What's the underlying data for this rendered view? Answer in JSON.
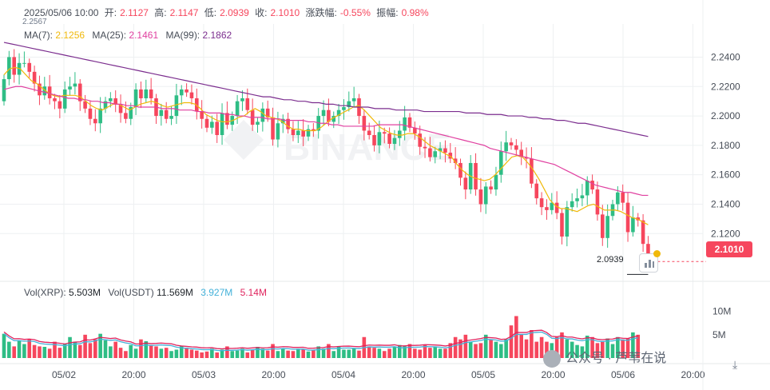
{
  "info": {
    "datetime": "2025/05/06 10:00",
    "open_label": "开:",
    "open": "2.1127",
    "high_label": "高:",
    "high": "2.1147",
    "low_label": "低:",
    "low": "2.0939",
    "close_label": "收:",
    "close": "2.1010",
    "change_label": "涨跌幅:",
    "change": "-0.55%",
    "amp_label": "振幅:",
    "amp": "0.98%"
  },
  "ma": {
    "ma7_label": "MA(7):",
    "ma7": "2.1256",
    "ma25_label": "MA(25):",
    "ma25": "2.1461",
    "ma99_label": "MA(99):",
    "ma99": "2.1862"
  },
  "vol": {
    "xrp_label": "Vol(XRP):",
    "xrp": "5.503M",
    "usdt_label": "Vol(USDT)",
    "usdt": "11.569M",
    "ma1": "3.927M",
    "ma2": "5.14M"
  },
  "markers": {
    "high_marker": "2.2567",
    "low_marker": "2.0939",
    "last_price": "2.1010"
  },
  "watermark": "BINANCE",
  "brand": {
    "separator": "公众号 · 芦苇在说"
  },
  "download_icon": "download-icon",
  "colors": {
    "up": "#2ebd85",
    "down": "#f6465d",
    "ma7": "#f0b90b",
    "ma25": "#e040a0",
    "ma99": "#7b2d8e",
    "grid": "#eef0f2"
  },
  "chart_data": {
    "type": "candlestick",
    "interval": "1h",
    "y_axis": {
      "ticks": [
        2.24,
        2.22,
        2.2,
        2.18,
        2.16,
        2.14,
        2.12
      ],
      "tick_labels": [
        "2.2400",
        "2.2200",
        "2.2000",
        "2.1800",
        "2.1600",
        "2.1400",
        "2.1200"
      ],
      "range": [
        2.093,
        2.256
      ]
    },
    "x_axis": {
      "tick_labels": [
        "05/02",
        "20:00",
        "05/03",
        "20:00",
        "05/04",
        "20:00",
        "05/05",
        "20:00",
        "05/06",
        "20:00"
      ]
    },
    "volume_axis": {
      "tick_labels": [
        "10M",
        "5M"
      ],
      "range": [
        0,
        12
      ]
    },
    "candles_close": [
      2.225,
      2.24,
      2.228,
      2.236,
      2.236,
      2.23,
      2.222,
      2.214,
      2.22,
      2.212,
      2.21,
      2.205,
      2.218,
      2.22,
      2.222,
      2.21,
      2.205,
      2.198,
      2.195,
      2.205,
      2.21,
      2.212,
      2.208,
      2.202,
      2.198,
      2.206,
      2.218,
      2.212,
      2.218,
      2.212,
      2.2,
      2.204,
      2.198,
      2.2,
      2.214,
      2.218,
      2.216,
      2.212,
      2.203,
      2.198,
      2.192,
      2.196,
      2.187,
      2.202,
      2.194,
      2.2,
      2.21,
      2.212,
      2.204,
      2.194,
      2.196,
      2.205,
      2.199,
      2.184,
      2.195,
      2.198,
      2.191,
      2.187,
      2.19,
      2.186,
      2.191,
      2.19,
      2.2,
      2.204,
      2.196,
      2.2,
      2.204,
      2.206,
      2.21,
      2.212,
      2.2,
      2.19,
      2.187,
      2.18,
      2.189,
      2.188,
      2.181,
      2.185,
      2.19,
      2.199,
      2.192,
      2.188,
      2.179,
      2.178,
      2.172,
      2.176,
      2.178,
      2.175,
      2.171,
      2.168,
      2.158,
      2.15,
      2.168,
      2.15,
      2.14,
      2.152,
      2.15,
      2.16,
      2.176,
      2.182,
      2.18,
      2.177,
      2.172,
      2.171,
      2.154,
      2.144,
      2.138,
      2.136,
      2.141,
      2.134,
      2.118,
      2.138,
      2.142,
      2.144,
      2.146,
      2.156,
      2.15,
      2.133,
      2.117,
      2.132,
      2.14,
      2.148,
      2.141,
      2.121,
      2.131,
      2.129,
      2.113,
      2.101
    ],
    "candles_open": [
      2.21,
      2.225,
      2.24,
      2.228,
      2.236,
      2.236,
      2.23,
      2.222,
      2.214,
      2.22,
      2.212,
      2.21,
      2.205,
      2.218,
      2.22,
      2.222,
      2.21,
      2.205,
      2.198,
      2.195,
      2.205,
      2.21,
      2.212,
      2.208,
      2.202,
      2.198,
      2.206,
      2.218,
      2.212,
      2.218,
      2.212,
      2.2,
      2.204,
      2.198,
      2.2,
      2.214,
      2.218,
      2.216,
      2.212,
      2.203,
      2.198,
      2.192,
      2.196,
      2.187,
      2.202,
      2.194,
      2.2,
      2.21,
      2.212,
      2.204,
      2.194,
      2.196,
      2.205,
      2.199,
      2.184,
      2.195,
      2.198,
      2.191,
      2.187,
      2.19,
      2.186,
      2.191,
      2.19,
      2.2,
      2.204,
      2.196,
      2.2,
      2.204,
      2.206,
      2.21,
      2.212,
      2.2,
      2.19,
      2.187,
      2.18,
      2.189,
      2.188,
      2.181,
      2.185,
      2.19,
      2.199,
      2.192,
      2.188,
      2.179,
      2.178,
      2.172,
      2.176,
      2.178,
      2.175,
      2.171,
      2.168,
      2.158,
      2.15,
      2.168,
      2.15,
      2.14,
      2.152,
      2.15,
      2.16,
      2.176,
      2.182,
      2.18,
      2.177,
      2.172,
      2.171,
      2.154,
      2.144,
      2.138,
      2.136,
      2.141,
      2.134,
      2.118,
      2.138,
      2.142,
      2.144,
      2.146,
      2.156,
      2.15,
      2.133,
      2.117,
      2.132,
      2.14,
      2.148,
      2.141,
      2.121,
      2.131,
      2.129,
      2.113
    ],
    "ma7": [
      2.228,
      2.232,
      2.233,
      2.232,
      2.228,
      2.224,
      2.222,
      2.219,
      2.216,
      2.214,
      2.213,
      2.214,
      2.214,
      2.214,
      2.213,
      2.21,
      2.207,
      2.205,
      2.204,
      2.206,
      2.208,
      2.208,
      2.206,
      2.204,
      2.206,
      2.208,
      2.209,
      2.21,
      2.209,
      2.207,
      2.206,
      2.207,
      2.208,
      2.209,
      2.209,
      2.208,
      2.205,
      2.201,
      2.199,
      2.197,
      2.196,
      2.196,
      2.197,
      2.199,
      2.2,
      2.203,
      2.205,
      2.203,
      2.2,
      2.199,
      2.198,
      2.196,
      2.193,
      2.191,
      2.191,
      2.19,
      2.19,
      2.19,
      2.192,
      2.195,
      2.198,
      2.2,
      2.202,
      2.204,
      2.206,
      2.207,
      2.204,
      2.2,
      2.196,
      2.192,
      2.19,
      2.188,
      2.187,
      2.187,
      2.188,
      2.188,
      2.186,
      2.183,
      2.18,
      2.178,
      2.176,
      2.174,
      2.172,
      2.167,
      2.163,
      2.16,
      2.158,
      2.157,
      2.156,
      2.157,
      2.16,
      2.164,
      2.168,
      2.172,
      2.173,
      2.172,
      2.168,
      2.163,
      2.157,
      2.15,
      2.143,
      2.139,
      2.137,
      2.137,
      2.136,
      2.135,
      2.137,
      2.139,
      2.14,
      2.138,
      2.136,
      2.136,
      2.136,
      2.135,
      2.133,
      2.131,
      2.13,
      2.128,
      2.126
    ],
    "ma25": [
      2.218,
      2.219,
      2.22,
      2.22,
      2.219,
      2.218,
      2.217,
      2.216,
      2.215,
      2.214,
      2.213,
      2.212,
      2.212,
      2.211,
      2.211,
      2.21,
      2.21,
      2.209,
      2.209,
      2.208,
      2.208,
      2.207,
      2.207,
      2.206,
      2.206,
      2.206,
      2.206,
      2.205,
      2.205,
      2.205,
      2.204,
      2.204,
      2.204,
      2.203,
      2.203,
      2.202,
      2.202,
      2.202,
      2.201,
      2.201,
      2.2,
      2.2,
      2.199,
      2.199,
      2.199,
      2.198,
      2.198,
      2.198,
      2.197,
      2.197,
      2.197,
      2.197,
      2.196,
      2.196,
      2.195,
      2.195,
      2.194,
      2.194,
      2.193,
      2.193,
      2.193,
      2.193,
      2.193,
      2.193,
      2.194,
      2.194,
      2.194,
      2.194,
      2.194,
      2.193,
      2.192,
      2.191,
      2.19,
      2.189,
      2.188,
      2.187,
      2.186,
      2.185,
      2.184,
      2.183,
      2.182,
      2.181,
      2.18,
      2.178,
      2.177,
      2.176,
      2.175,
      2.174,
      2.173,
      2.172,
      2.171,
      2.17,
      2.169,
      2.168,
      2.167,
      2.165,
      2.163,
      2.161,
      2.159,
      2.157,
      2.155,
      2.153,
      2.152,
      2.151,
      2.15,
      2.149,
      2.148,
      2.148,
      2.147,
      2.146,
      2.146
    ],
    "ma99": [
      2.25,
      2.249,
      2.248,
      2.247,
      2.246,
      2.245,
      2.244,
      2.243,
      2.242,
      2.241,
      2.24,
      2.239,
      2.238,
      2.237,
      2.236,
      2.235,
      2.234,
      2.233,
      2.232,
      2.231,
      2.23,
      2.229,
      2.228,
      2.227,
      2.226,
      2.225,
      2.224,
      2.223,
      2.222,
      2.221,
      2.22,
      2.219,
      2.218,
      2.217,
      2.216,
      2.215,
      2.214,
      2.213,
      2.213,
      2.212,
      2.211,
      2.211,
      2.21,
      2.21,
      2.209,
      2.209,
      2.208,
      2.208,
      2.207,
      2.207,
      2.206,
      2.206,
      2.206,
      2.205,
      2.205,
      2.205,
      2.204,
      2.204,
      2.204,
      2.204,
      2.203,
      2.203,
      2.203,
      2.203,
      2.203,
      2.203,
      2.202,
      2.202,
      2.202,
      2.201,
      2.201,
      2.201,
      2.2,
      2.2,
      2.2,
      2.199,
      2.199,
      2.198,
      2.198,
      2.197,
      2.197,
      2.196,
      2.195,
      2.195,
      2.194,
      2.193,
      2.192,
      2.191,
      2.19,
      2.189,
      2.188,
      2.187,
      2.186
    ],
    "volume": [
      5.2,
      3.5,
      2.5,
      3.8,
      3.0,
      4.0,
      2.8,
      2.5,
      2.4,
      2.0,
      3.5,
      2.2,
      3.0,
      4.5,
      3.5,
      2.8,
      5.0,
      3.2,
      4.0,
      5.2,
      3.8,
      2.5,
      3.5,
      2.2,
      1.5,
      2.8,
      2.0,
      4.0,
      3.6,
      2.8,
      2.5,
      2.0,
      2.2,
      1.5,
      1.8,
      2.5,
      2.2,
      1.8,
      1.6,
      1.2,
      1.4,
      2.0,
      1.2,
      1.8,
      2.5,
      1.5,
      1.6,
      2.0,
      1.2,
      1.8,
      2.4,
      2.0,
      1.6,
      3.0,
      1.5,
      2.0,
      1.6,
      1.5,
      2.0,
      1.8,
      1.4,
      1.7,
      2.5,
      2.0,
      3.0,
      1.5,
      2.5,
      1.8,
      1.8,
      2.0,
      1.6,
      4.5,
      2.5,
      2.2,
      2.0,
      1.5,
      2.0,
      2.4,
      2.8,
      2.5,
      3.0,
      2.0,
      1.8,
      2.8,
      2.2,
      2.5,
      2.0,
      2.0,
      3.2,
      4.5,
      4.0,
      5.0,
      3.5,
      3.0,
      3.2,
      5.0,
      4.0,
      3.5,
      3.0,
      4.0,
      7.0,
      9.0,
      5.0,
      4.0,
      6.0,
      3.5,
      4.5,
      3.5,
      3.2,
      4.5,
      5.5,
      4.0,
      3.5,
      2.8,
      2.5,
      4.8,
      4.5,
      3.2,
      3.5,
      4.2,
      3.0,
      4.5,
      4.0,
      4.2,
      5.5,
      5.0
    ]
  }
}
